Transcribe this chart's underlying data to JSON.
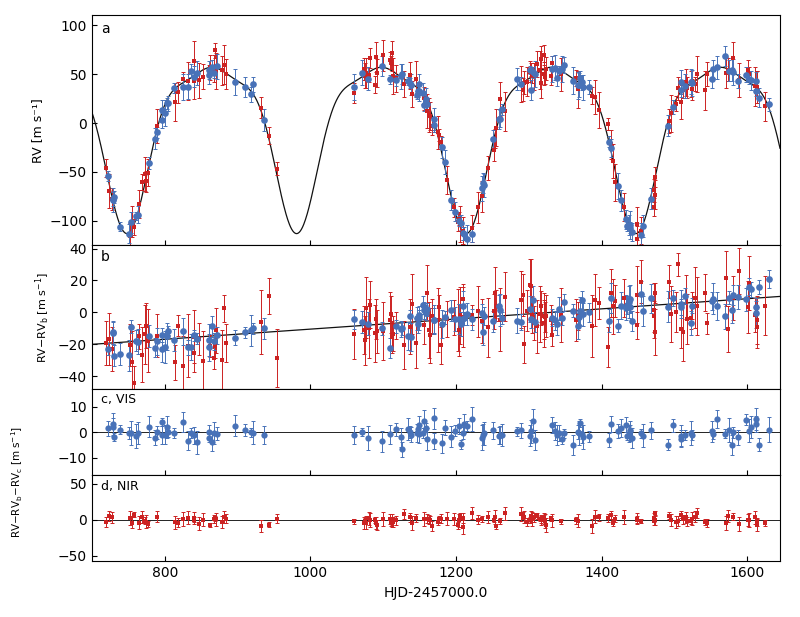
{
  "xlabel": "HJD-2457000.0",
  "xlim": [
    700,
    1645
  ],
  "xticks": [
    800,
    1000,
    1200,
    1400,
    1600
  ],
  "blue_color": "#4872B8",
  "red_color": "#CC2222",
  "line_color": "#111111",
  "panel_a": {
    "label": "a",
    "ylabel": "RV [m s⁻¹]",
    "ylim": [
      -125,
      110
    ],
    "yticks": [
      -100,
      -50,
      0,
      50,
      100
    ]
  },
  "panel_b": {
    "label": "b",
    "ylim": [
      -48,
      42
    ],
    "yticks": [
      -40,
      -20,
      0,
      20,
      40
    ]
  },
  "panel_c": {
    "label": "c, VIS",
    "ylim": [
      -17,
      17
    ],
    "yticks": [
      -10,
      0,
      10
    ]
  },
  "panel_d": {
    "label": "d, NIR",
    "ylim": [
      -58,
      62
    ],
    "yticks": [
      -50,
      0,
      50
    ]
  }
}
